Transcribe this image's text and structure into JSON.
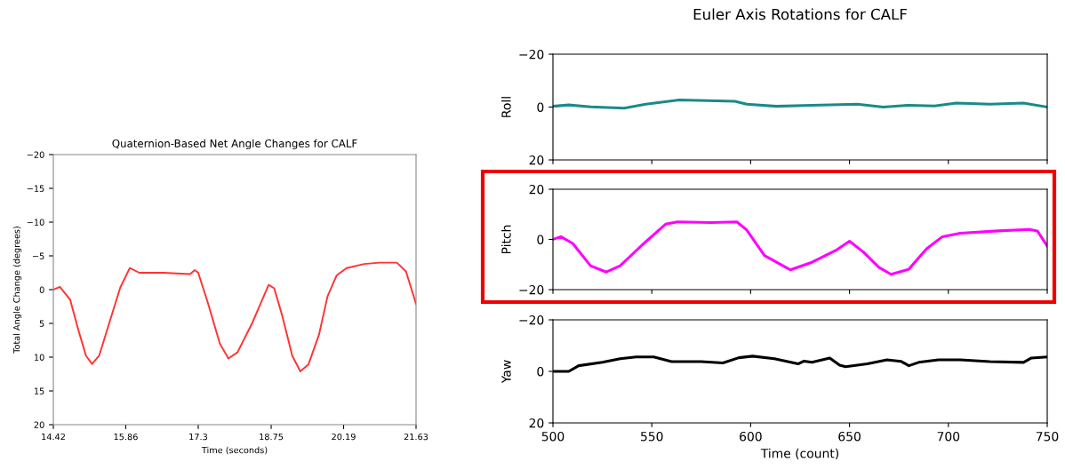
{
  "chart_data": [
    {
      "type": "line",
      "title": "Quaternion-Based Net Angle Changes for CALF",
      "xlabel": "Time (seconds)",
      "ylabel": "Total Angle Change (degrees)",
      "xlim": [
        14.42,
        21.63
      ],
      "xticks": [
        14.42,
        15.86,
        17.3,
        18.75,
        20.19,
        21.63
      ],
      "ylim": [
        20,
        -20
      ],
      "yticks": [
        {
          "value": -20,
          "label": "−20"
        },
        {
          "value": -15,
          "label": "−15"
        },
        {
          "value": -10,
          "label": "−10"
        },
        {
          "value": -5,
          "label": "−5"
        },
        0,
        5,
        10,
        15,
        20
      ],
      "grid": false,
      "series": [
        {
          "color": "#ff3333",
          "x": [
            14.42,
            14.55,
            14.755,
            14.93,
            15.07,
            15.19,
            15.33,
            15.55,
            15.75,
            15.94,
            16.13,
            16.61,
            17.14,
            17.23,
            17.3,
            17.49,
            17.73,
            17.9,
            18.08,
            18.37,
            18.55,
            18.7,
            18.81,
            18.96,
            19.17,
            19.33,
            19.49,
            19.7,
            19.87,
            20.05,
            20.25,
            20.6,
            20.9,
            21.25,
            21.43,
            21.63
          ],
          "values": [
            0,
            -0.4,
            1.5,
            6.3,
            9.8,
            11.0,
            9.8,
            4.5,
            -0.3,
            -3.2,
            -2.5,
            -2.5,
            -2.3,
            -2.9,
            -2.5,
            1.9,
            8.0,
            10.2,
            9.3,
            5.0,
            1.9,
            -0.7,
            -0.2,
            3.6,
            9.8,
            12.1,
            11.1,
            6.7,
            1.0,
            -2.1,
            -3.2,
            -3.8,
            -4.0,
            -4.0,
            -2.7,
            2.1
          ]
        }
      ]
    },
    {
      "type": "line",
      "title": "Euler Axis Rotations for CALF",
      "ylabel": "Roll",
      "xlim": [
        500,
        750
      ],
      "xticks": [
        500,
        550,
        600,
        650,
        700,
        750
      ],
      "ylim": [
        20,
        -20
      ],
      "yticks": [
        {
          "value": -20,
          "label": "−20"
        },
        0,
        20
      ],
      "tick_labels": "y",
      "grid": false,
      "series": [
        {
          "color": "#1a8a8a",
          "x": [
            500,
            508,
            519,
            536,
            547,
            564,
            592,
            598,
            613,
            631,
            654,
            667,
            680,
            693,
            704,
            721,
            738,
            750
          ],
          "values": [
            -0.3,
            -0.8,
            -0.1,
            0.4,
            -1.1,
            -2.7,
            -2.2,
            -1.1,
            -0.3,
            -0.7,
            -1.1,
            0,
            -0.7,
            -0.4,
            -1.5,
            -1.1,
            -1.5,
            0
          ]
        }
      ]
    },
    {
      "type": "line",
      "ylabel": "Pitch",
      "xlim": [
        500,
        750
      ],
      "xticks": [
        500,
        550,
        600,
        650,
        700,
        750
      ],
      "ylim": [
        -20,
        20
      ],
      "yticks": [
        {
          "value": -20,
          "label": "−20"
        },
        0,
        20
      ],
      "tick_labels": "y",
      "grid": false,
      "series": [
        {
          "color": "#ff00ff",
          "x": [
            500,
            504,
            510,
            519,
            527,
            534,
            545,
            557,
            563,
            580,
            593,
            598,
            607,
            620,
            631,
            643,
            650,
            657,
            665,
            671,
            680,
            689,
            697,
            706,
            725,
            741,
            745,
            750
          ],
          "values": [
            0,
            1.1,
            -1.6,
            -10.5,
            -13,
            -10.5,
            -2.3,
            6.1,
            7,
            6.7,
            7,
            3.8,
            -6.4,
            -12.1,
            -9.1,
            -4.4,
            -0.7,
            -5,
            -11.2,
            -13.9,
            -11.9,
            -3.7,
            1.1,
            2.5,
            3.4,
            4,
            3.4,
            -2.6
          ]
        }
      ]
    },
    {
      "type": "line",
      "ylabel": "Yaw",
      "xlabel": "Time (count)",
      "xlim": [
        500,
        750
      ],
      "xticks": [
        500,
        550,
        600,
        650,
        700,
        750
      ],
      "ylim": [
        20,
        -20
      ],
      "yticks": [
        {
          "value": -20,
          "label": "−20"
        },
        0,
        20
      ],
      "grid": false,
      "series": [
        {
          "color": "#000000",
          "x": [
            500,
            508,
            513,
            525,
            534,
            542,
            551,
            560,
            575,
            586,
            594,
            601,
            612,
            624,
            627,
            631,
            640,
            645,
            648,
            659,
            669,
            676,
            680,
            685,
            695,
            706,
            721,
            738,
            742,
            750
          ],
          "values": [
            0,
            0,
            -2.2,
            -3.5,
            -4.9,
            -5.6,
            -5.6,
            -3.8,
            -3.8,
            -3.3,
            -5.3,
            -5.9,
            -4.9,
            -2.9,
            -4.0,
            -3.5,
            -5.2,
            -2.4,
            -1.8,
            -2.9,
            -4.5,
            -3.9,
            -2.2,
            -3.5,
            -4.5,
            -4.5,
            -3.8,
            -3.5,
            -5.2,
            -5.6
          ]
        }
      ]
    }
  ]
}
